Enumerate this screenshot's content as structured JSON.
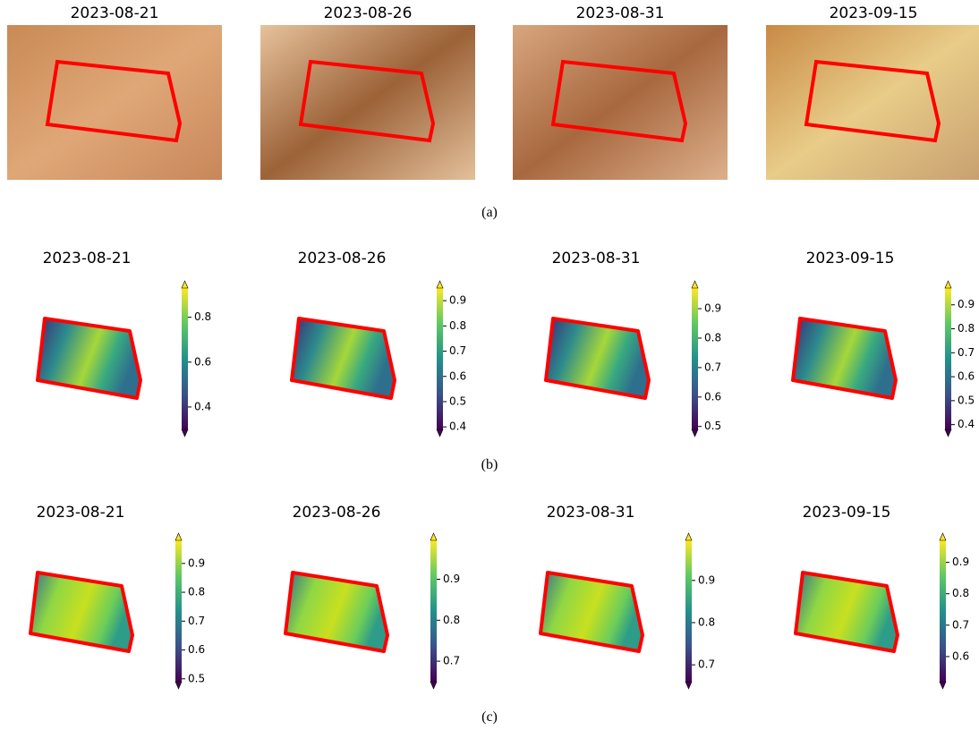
{
  "rows": [
    {
      "label": "(a)",
      "panels": [
        {
          "date": "2023-08-21"
        },
        {
          "date": "2023-08-26"
        },
        {
          "date": "2023-08-31"
        },
        {
          "date": "2023-09-15"
        }
      ]
    },
    {
      "label": "(b)",
      "panels": [
        {
          "date": "2023-08-21",
          "colorbar": {
            "lim": [
              0.3,
              0.93
            ],
            "ticks": [
              0.4,
              0.6,
              0.8
            ]
          }
        },
        {
          "date": "2023-08-26",
          "colorbar": {
            "lim": [
              0.39,
              0.95
            ],
            "ticks": [
              0.4,
              0.5,
              0.6,
              0.7,
              0.8,
              0.9
            ]
          }
        },
        {
          "date": "2023-08-31",
          "colorbar": {
            "lim": [
              0.49,
              0.97
            ],
            "ticks": [
              0.5,
              0.6,
              0.7,
              0.8,
              0.9
            ]
          }
        },
        {
          "date": "2023-09-15",
          "colorbar": {
            "lim": [
              0.38,
              0.97
            ],
            "ticks": [
              0.4,
              0.5,
              0.6,
              0.7,
              0.8,
              0.9
            ]
          }
        }
      ]
    },
    {
      "label": "(c)",
      "panels": [
        {
          "date": "2023-08-21",
          "colorbar": {
            "lim": [
              0.49,
              0.98
            ],
            "ticks": [
              0.5,
              0.6,
              0.7,
              0.8,
              0.9
            ]
          }
        },
        {
          "date": "2023-08-26",
          "colorbar": {
            "lim": [
              0.65,
              0.995
            ],
            "ticks": [
              0.7,
              0.8,
              0.9
            ]
          }
        },
        {
          "date": "2023-08-31",
          "colorbar": {
            "lim": [
              0.66,
              0.995
            ],
            "ticks": [
              0.7,
              0.8,
              0.9
            ]
          }
        },
        {
          "date": "2023-09-15",
          "colorbar": {
            "lim": [
              0.52,
              0.97
            ],
            "ticks": [
              0.6,
              0.7,
              0.8,
              0.9
            ]
          }
        }
      ]
    }
  ]
}
